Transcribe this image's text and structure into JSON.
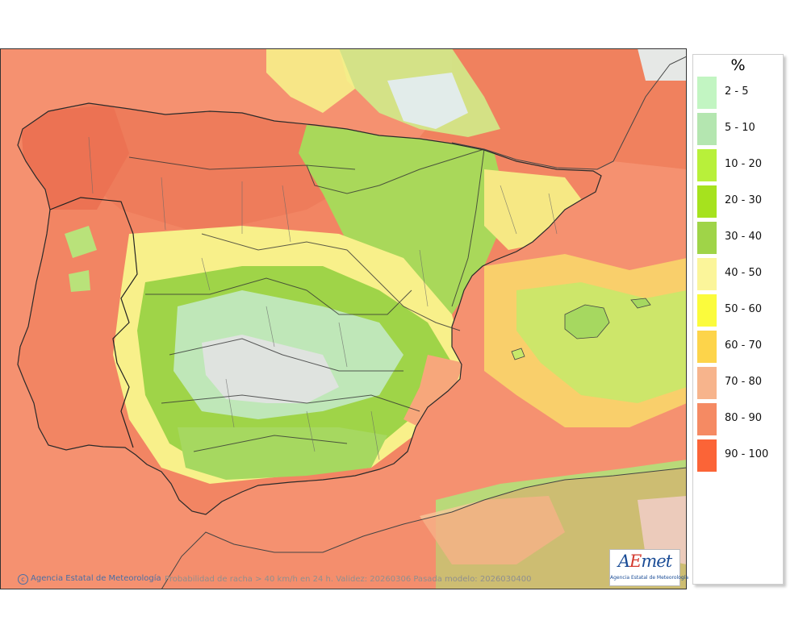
{
  "map": {
    "sea_color": "#f59170",
    "land_high_color": "#f28563",
    "note": ""
  },
  "legend": {
    "title": "%",
    "items": [
      {
        "label": "2 - 5",
        "color": "#c2f5c2"
      },
      {
        "label": "5 - 10",
        "color": "#b4e6b0"
      },
      {
        "label": "10 - 20",
        "color": "#b8f03a"
      },
      {
        "label": "20 - 30",
        "color": "#a6e21e"
      },
      {
        "label": "30 - 40",
        "color": "#9fd448"
      },
      {
        "label": "40 - 50",
        "color": "#fbf59a"
      },
      {
        "label": "50 - 60",
        "color": "#fbfb3c"
      },
      {
        "label": "60 - 70",
        "color": "#fdd44a"
      },
      {
        "label": "70 - 80",
        "color": "#f7b48c"
      },
      {
        "label": "80 - 90",
        "color": "#f58a63"
      },
      {
        "label": "90 - 100",
        "color": "#fb6437"
      }
    ]
  },
  "footer": {
    "copyright": "Agencia Estatal de Meteorología",
    "caption": "Probabilidad de racha > 40 km/h en 24 h. Validez: 20260306 Pasada modelo: 2026030400"
  },
  "logo": {
    "text_a": "A",
    "text_e": "E",
    "text_rest": "met",
    "subtitle": "Agencia Estatal de Meteorología"
  }
}
